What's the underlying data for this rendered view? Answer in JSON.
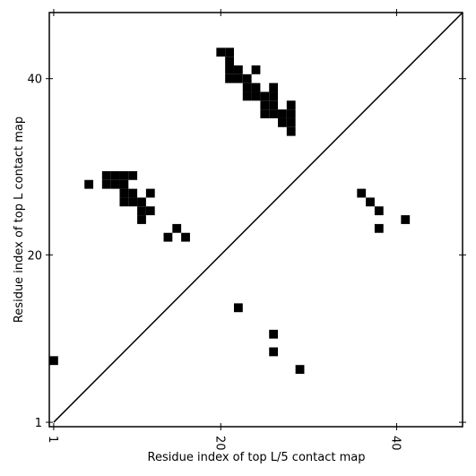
{
  "chart_data": {
    "type": "scatter",
    "marker": "square",
    "color": "#000000",
    "xlabel": "Residue index of top L/5 contact map",
    "ylabel": "Residue index of top L contact map",
    "xlim": [
      0.5,
      47.5
    ],
    "ylim": [
      0.5,
      47.5
    ],
    "xticks": [
      1,
      20,
      40
    ],
    "yticks": [
      1,
      20,
      40
    ],
    "x": [
      22,
      26,
      26,
      29,
      36,
      37,
      38,
      38,
      41,
      1,
      5,
      7,
      8,
      9,
      10,
      7,
      8,
      9,
      9,
      10,
      12,
      9,
      10,
      11,
      11,
      12,
      11,
      14,
      15,
      16,
      20,
      21,
      21,
      21,
      22,
      24,
      21,
      22,
      23,
      23,
      24,
      26,
      23,
      24,
      25,
      26,
      25,
      26,
      28,
      25,
      26,
      27,
      28,
      27,
      28,
      28
    ],
    "y": [
      14,
      11,
      9,
      7,
      27,
      26,
      25,
      23,
      24,
      8,
      28,
      29,
      29,
      29,
      29,
      28,
      28,
      28,
      27,
      27,
      27,
      26,
      26,
      26,
      25,
      25,
      24,
      22,
      23,
      22,
      43,
      43,
      42,
      41,
      41,
      41,
      40,
      40,
      40,
      39,
      39,
      39,
      38,
      38,
      38,
      38,
      37,
      37,
      37,
      36,
      36,
      36,
      36,
      35,
      35,
      34
    ]
  }
}
